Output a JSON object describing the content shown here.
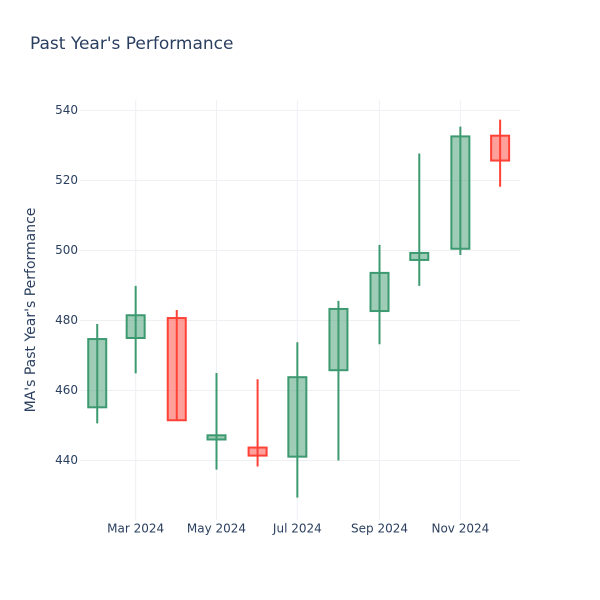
{
  "chart_data": {
    "type": "candlestick",
    "title": "Past Year's Performance",
    "y_label": "MA's Past Year's Performance",
    "x": [
      "2024-02",
      "2024-03",
      "2024-04",
      "2024-05",
      "2024-06",
      "2024-07",
      "2024-08",
      "2024-09",
      "2024-10",
      "2024-11",
      "2024-12"
    ],
    "open": [
      455.2,
      475.0,
      480.7,
      446.0,
      443.7,
      441.1,
      465.8,
      482.7,
      497.3,
      500.5,
      532.8
    ],
    "high": [
      479.0,
      489.9,
      483.0,
      465.0,
      463.2,
      473.8,
      485.6,
      501.6,
      527.7,
      535.4,
      537.4
    ],
    "low": [
      450.6,
      464.9,
      451.5,
      437.4,
      438.3,
      429.4,
      440.0,
      473.2,
      489.9,
      498.7,
      518.2
    ],
    "close": [
      474.7,
      481.5,
      451.5,
      447.2,
      441.4,
      463.8,
      483.3,
      493.6,
      499.3,
      532.6,
      525.7
    ],
    "increasing_color": "#3d9970",
    "decreasing_color": "#ff4136",
    "ylim": [
      423,
      543
    ],
    "yticks": [
      440,
      460,
      480,
      500,
      520,
      540
    ],
    "xlim": [
      "2024-01-19",
      "2024-12-16"
    ],
    "xticks": [
      {
        "value": "2024-03",
        "label": "Mar 2024"
      },
      {
        "value": "2024-05",
        "label": "May 2024"
      },
      {
        "value": "2024-07",
        "label": "Jul 2024"
      },
      {
        "value": "2024-09",
        "label": "Sep 2024"
      },
      {
        "value": "2024-11",
        "label": "Nov 2024"
      }
    ],
    "grid": true
  }
}
